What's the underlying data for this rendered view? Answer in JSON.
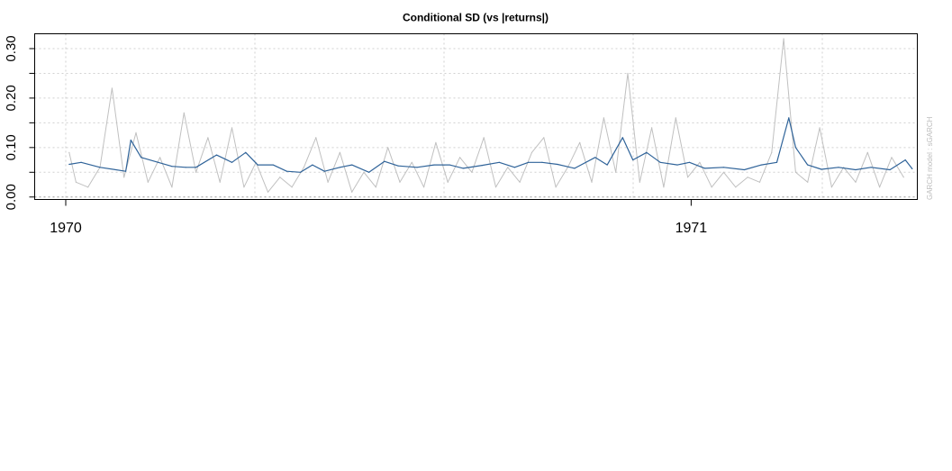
{
  "chart_data": {
    "type": "line",
    "title": "Conditional SD (vs |returns|)",
    "side_text": "GARCH model : sGARCH",
    "ylim": [
      -0.005,
      0.33
    ],
    "y_ticks": [
      "0.00",
      "0.10",
      "0.20",
      "0.30"
    ],
    "y_ticks_minor": [
      0.05,
      0.15,
      0.25
    ],
    "x_ticks": [
      {
        "label": "1970",
        "x": "1970-01-01"
      },
      {
        "label": "1971",
        "x": "1971-01-01"
      }
    ],
    "xlim": [
      "1970-01-01",
      "1971-05-13"
    ],
    "grid": true,
    "colors": {
      "abs_returns": "#c0c0c0",
      "cond_sd": "#2f6399",
      "grid": "#d0d0d0",
      "zero_line": "#9a9a9a"
    },
    "series": [
      {
        "role": "abs_returns",
        "color": "#c0c0c0",
        "x": [
          "1970-01-03",
          "1970-01-07",
          "1970-01-14",
          "1970-01-21",
          "1970-01-28",
          "1970-02-04",
          "1970-02-11",
          "1970-02-18",
          "1970-02-25",
          "1970-03-04",
          "1970-03-11",
          "1970-03-18",
          "1970-03-25",
          "1970-04-01",
          "1970-04-08",
          "1970-04-15",
          "1970-04-22",
          "1970-04-29",
          "1970-05-06",
          "1970-05-13",
          "1970-05-20",
          "1970-05-27",
          "1970-06-03",
          "1970-06-10",
          "1970-06-17",
          "1970-06-24",
          "1970-07-01",
          "1970-07-08",
          "1970-07-15",
          "1970-07-22",
          "1970-07-29",
          "1970-08-05",
          "1970-08-12",
          "1970-08-19",
          "1970-08-26",
          "1970-09-02",
          "1970-09-09",
          "1970-09-16",
          "1970-09-23",
          "1970-09-30",
          "1970-10-07",
          "1970-10-14",
          "1970-10-21",
          "1970-10-28",
          "1970-11-04",
          "1970-11-11",
          "1970-11-18",
          "1970-11-25",
          "1970-12-02",
          "1970-12-09",
          "1970-12-16",
          "1970-12-23",
          "1970-12-30",
          "1971-01-06",
          "1971-01-13",
          "1971-01-20",
          "1971-01-27",
          "1971-02-03",
          "1971-02-10",
          "1971-02-17",
          "1971-02-24",
          "1971-03-03",
          "1971-03-10",
          "1971-03-17",
          "1971-03-24",
          "1971-03-31",
          "1971-04-07",
          "1971-04-14",
          "1971-04-21",
          "1971-04-28",
          "1971-05-05"
        ],
        "values": [
          0.09,
          0.03,
          0.02,
          0.06,
          0.22,
          0.04,
          0.13,
          0.03,
          0.08,
          0.02,
          0.17,
          0.05,
          0.12,
          0.03,
          0.14,
          0.02,
          0.07,
          0.01,
          0.04,
          0.02,
          0.06,
          0.12,
          0.03,
          0.09,
          0.01,
          0.05,
          0.02,
          0.1,
          0.03,
          0.07,
          0.02,
          0.11,
          0.03,
          0.08,
          0.05,
          0.12,
          0.02,
          0.06,
          0.03,
          0.09,
          0.12,
          0.02,
          0.06,
          0.11,
          0.03,
          0.16,
          0.05,
          0.25,
          0.03,
          0.14,
          0.02,
          0.16,
          0.04,
          0.07,
          0.02,
          0.05,
          0.02,
          0.04,
          0.03,
          0.09,
          0.32,
          0.05,
          0.03,
          0.14,
          0.02,
          0.06,
          0.03,
          0.09,
          0.02,
          0.08,
          0.04
        ]
      },
      {
        "role": "cond_sd",
        "color": "#2f6399",
        "x": [
          "1970-01-03",
          "1970-01-10",
          "1970-01-21",
          "1970-02-05",
          "1970-02-08",
          "1970-02-14",
          "1970-02-24",
          "1970-03-04",
          "1970-03-12",
          "1970-03-18",
          "1970-03-30",
          "1970-04-08",
          "1970-04-16",
          "1970-04-23",
          "1970-05-02",
          "1970-05-10",
          "1970-05-18",
          "1970-05-25",
          "1970-06-01",
          "1970-06-10",
          "1970-06-17",
          "1970-06-27",
          "1970-07-06",
          "1970-07-14",
          "1970-07-25",
          "1970-08-04",
          "1970-08-13",
          "1970-08-21",
          "1970-09-01",
          "1970-09-11",
          "1970-09-20",
          "1970-09-28",
          "1970-10-06",
          "1970-10-15",
          "1970-10-25",
          "1970-11-06",
          "1970-11-13",
          "1970-11-22",
          "1970-11-28",
          "1970-12-06",
          "1970-12-14",
          "1970-12-24",
          "1970-12-31",
          "1971-01-09",
          "1971-01-20",
          "1971-02-01",
          "1971-02-11",
          "1971-02-20",
          "1971-02-27",
          "1971-03-03",
          "1971-03-10",
          "1971-03-18",
          "1971-03-28",
          "1971-04-07",
          "1971-04-16",
          "1971-04-27",
          "1971-05-06",
          "1971-05-10"
        ],
        "values": [
          0.066,
          0.07,
          0.06,
          0.052,
          0.115,
          0.08,
          0.07,
          0.062,
          0.06,
          0.06,
          0.085,
          0.07,
          0.09,
          0.065,
          0.065,
          0.052,
          0.05,
          0.065,
          0.052,
          0.06,
          0.065,
          0.05,
          0.072,
          0.063,
          0.06,
          0.065,
          0.065,
          0.058,
          0.064,
          0.07,
          0.06,
          0.07,
          0.07,
          0.066,
          0.058,
          0.08,
          0.065,
          0.12,
          0.075,
          0.09,
          0.07,
          0.065,
          0.07,
          0.058,
          0.06,
          0.055,
          0.065,
          0.07,
          0.16,
          0.1,
          0.065,
          0.056,
          0.06,
          0.055,
          0.06,
          0.055,
          0.075,
          0.057
        ]
      }
    ]
  }
}
